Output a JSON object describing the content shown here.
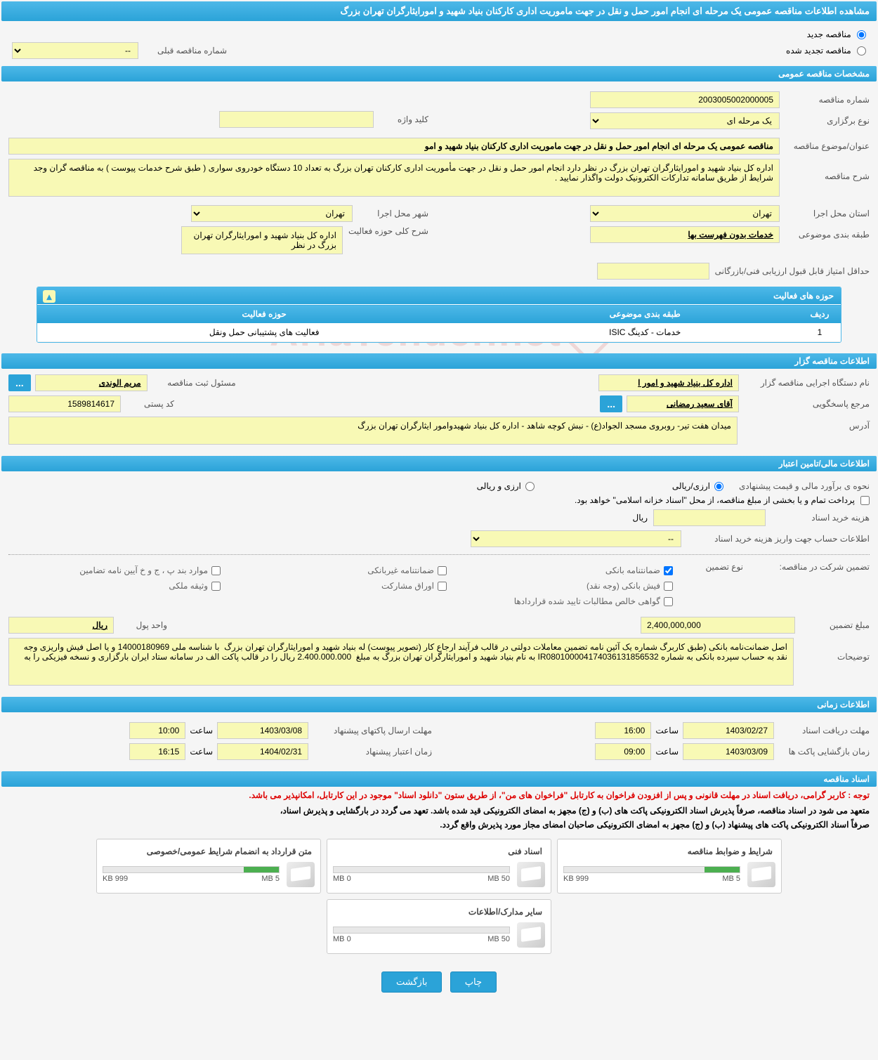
{
  "page_title": "مشاهده اطلاعات مناقصه عمومی یک مرحله ای انجام امور حمل و نقل در جهت ماموریت اداری کارکنان بنیاد شهید و امورایثارگران تهران بزرگ",
  "tender_type": {
    "new_label": "مناقصه جدید",
    "renewed_label": "مناقصه تجدید شده",
    "prev_number_label": "شماره مناقصه قبلی",
    "prev_number_value": "--"
  },
  "general": {
    "header": "مشخصات مناقصه عمومی",
    "number_label": "شماره مناقصه",
    "number_value": "2003005002000005",
    "hold_type_label": "نوع برگزاری",
    "hold_type_value": "یک مرحله ای",
    "keyword_label": "کلید واژه",
    "keyword_value": "",
    "subject_label": "عنوان/موضوع مناقصه",
    "subject_value": "مناقصه عمومی یک مرحله ای انجام امور حمل و نقل در جهت ماموریت اداری کارکنان بنیاد شهید و امو",
    "description_label": "شرح مناقصه",
    "description_value": "اداره کل بنیاد شهید و امورایثارگران تهران بزرگ در نظر دارد انجام امور حمل و نقل در جهت مأموریت اداری کارکنان تهران بزرگ به تعداد 10 دستگاه خودروی سواری ( طبق شرح خدمات پیوست ) به مناقصه گران وجد شرایط از طریق سامانه تدارکات الکترونیک دولت واگذار نمایید .",
    "province_label": "استان محل اجرا",
    "province_value": "تهران",
    "city_label": "شهر محل اجرا",
    "city_value": "تهران",
    "category_label": "طبقه بندی موضوعی",
    "category_value": "خدمات بدون فهرست بها",
    "activity_desc_label": "شرح کلی حوزه فعالیت",
    "activity_desc_value": "اداره کل بنیاد شهید و امورایثارگران تهران بزرگ در نظر",
    "min_score_label": "حداقل امتیاز قابل قبول ارزیابی فنی/بازرگانی",
    "min_score_value": ""
  },
  "activity": {
    "header": "حوزه های فعالیت",
    "col_row": "ردیف",
    "col_category": "طبقه بندی موضوعی",
    "col_activity": "حوزه فعالیت",
    "rows": [
      {
        "n": "1",
        "category": "خدمات - کدینگ ISIC",
        "activity": "فعالیت های پشتیبانی حمل ونقل"
      }
    ]
  },
  "organizer": {
    "header": "اطلاعات مناقصه گزار",
    "exec_name_label": "نام دستگاه اجرایی مناقصه گزار",
    "exec_name_value": "اداره کل بنیاد شهید و امور ا",
    "reg_officer_label": "مسئول ثبت مناقصه",
    "reg_officer_value": "مریم الوندی",
    "more_btn": "...",
    "responder_label": "مرجع پاسخگویی",
    "responder_value": "آقای سعید رمضانی",
    "postal_label": "کد پستی",
    "postal_value": "1589814617",
    "address_label": "آدرس",
    "address_value": "میدان هفت تیر- روبروی مسجد الجواد(ع) - نبش کوچه شاهد - اداره کل بنیاد شهیدوامور ایثارگران تهران بزرگ"
  },
  "financial": {
    "header": "اطلاعات مالی/تامین اعتبار",
    "estimate_label": "نحوه ی برآورد مالی و قیمت پیشنهادی",
    "currency_rial": "ارزی/ریالی",
    "currency_foreign": "ارزی و ریالی",
    "payment_note": "پرداخت تمام و یا بخشی از مبلغ مناقصه، از محل \"اسناد خزانه اسلامی\" خواهد بود.",
    "doc_cost_label": "هزینه خرید اسناد",
    "doc_cost_value": "",
    "doc_cost_unit": "ریال",
    "account_label": "اطلاعات حساب جهت واریز هزینه خرید اسناد",
    "account_value": "--",
    "guarantee_section_label": "تضمین شرکت در مناقصه:",
    "guarantee_type_label": "نوع تضمین",
    "guarantee_options": {
      "bank_guarantee": "ضمانتنامه بانکی",
      "nonbank_guarantee": "ضمانتنامه غیربانکی",
      "regulation_items": "موارد بند پ ، ج و خ آیین نامه تضامین",
      "bank_receipt": "فیش بانکی (وجه نقد)",
      "participation_bonds": "اوراق مشارکت",
      "property_deed": "وثیقه ملکی",
      "contract_clearance": "گواهی خالص مطالبات تایید شده قراردادها"
    },
    "guarantee_amount_label": "مبلغ تضمین",
    "guarantee_amount_value": "2,400,000,000",
    "currency_unit_label": "واحد پول",
    "currency_unit_value": "ریال",
    "notes_label": "توضیحات",
    "notes_value": "اصل ضمانت‌نامه بانکی (طبق کاربرگ شماره یک آئین نامه تضمین معاملات دولتی در قالب فرآیند ارجاع کار (تصویر پیوست) له بنیاد شهید و امورایثارگران تهران بزرگ  با شناسه ملی 14000180969 و یا اصل فیش واریزی وجه نقد به حساب سپرده بانکی به شماره IR080100004174036131856532 به نام بنیاد شهید و امورایثارگران تهران بزرگ به مبلغ  2.400.000.000 ریال را در قالب پاکت الف در سامانه ستاد ایران بارگزاری و نسخه فیزیکی را به"
  },
  "timing": {
    "header": "اطلاعات زمانی",
    "receive_deadline_label": "مهلت دریافت اسناد",
    "receive_deadline_date": "1403/02/27",
    "receive_deadline_time_label": "ساعت",
    "receive_deadline_time": "16:00",
    "submit_deadline_label": "مهلت ارسال پاکتهای پیشنهاد",
    "submit_deadline_date": "1403/03/08",
    "submit_deadline_time": "10:00",
    "open_label": "زمان بازگشایی پاکت ها",
    "open_date": "1403/03/09",
    "open_time": "09:00",
    "validity_label": "زمان اعتبار پیشنهاد",
    "validity_date": "1404/02/31",
    "validity_time": "16:15"
  },
  "documents": {
    "header": "اسناد مناقصه",
    "notice": "توجه : کاربر گرامی، دریافت اسناد در مهلت قانونی و پس از افزودن فراخوان به کارتابل \"فراخوان های من\"، از طریق ستون \"دانلود اسناد\" موجود در این کارتابل، امکانپذیر می باشد.",
    "commitment1": "متعهد می شود در اسناد مناقصه، صرفاً پذیرش اسناد الکترونیکی پاکت های (ب) و (ج) مجهز به امضای الکترونیکی قید شده باشد. تعهد می گردد در بارگشایی و پذیرش اسناد،",
    "commitment2": "صرفاً اسناد الکترونیکی پاکت های پیشنهاد (ب) و (ج) مجهز به امضای الکترونیکی صاحبان امضای مجاز مورد پذیرش واقع گردد.",
    "panels": [
      {
        "title": "شرایط و ضوابط مناقصه",
        "used": "999 KB",
        "total": "5 MB",
        "fill": 20
      },
      {
        "title": "اسناد فنی",
        "used": "0 MB",
        "total": "50 MB",
        "fill": 0
      },
      {
        "title": "متن قرارداد به انضمام شرایط عمومی/خصوصی",
        "used": "999 KB",
        "total": "5 MB",
        "fill": 20
      },
      {
        "title": "سایر مدارک/اطلاعات",
        "used": "0 MB",
        "total": "50 MB",
        "fill": 0
      }
    ]
  },
  "footer": {
    "print": "چاپ",
    "back": "بازگشت"
  },
  "watermark": "AriaTender.net"
}
